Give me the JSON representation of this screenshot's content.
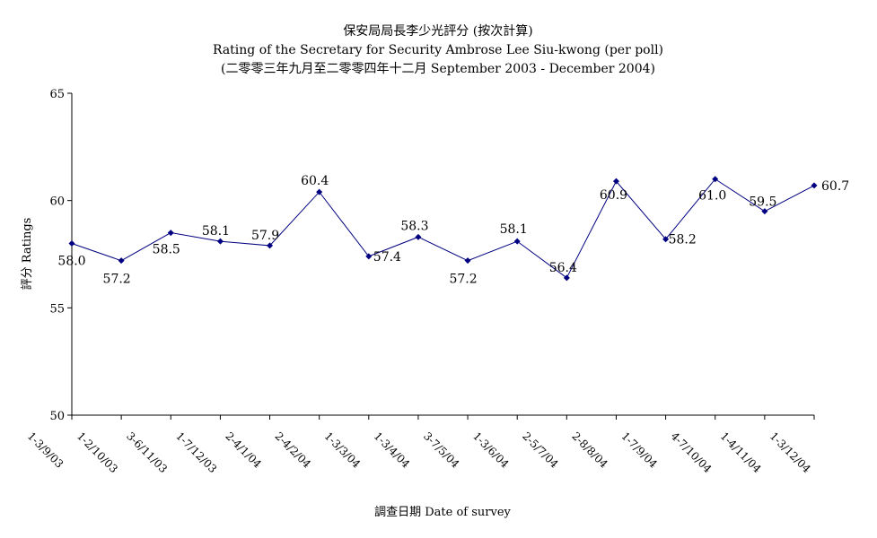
{
  "chart_data": {
    "type": "line",
    "title": "保安局局長李少光評分 (按次計算)",
    "subtitle_line1": "Rating of the Secretary for Security Ambrose Lee Siu-kwong  (per poll)",
    "subtitle_line2": "(二零零三年九月至二零零四年十二月  September 2003 - December 2004)",
    "xlabel": "調查日期 Date of survey",
    "ylabel": "評分 Ratings",
    "ylim": [
      50,
      65
    ],
    "yticks": [
      50,
      55,
      60,
      65
    ],
    "grid": false,
    "categories": [
      "1-3/9/03",
      "1-2/10/03",
      "3-6/11/03",
      "1-7/12/03",
      "2-4/1/04",
      "2-4/2/04",
      "1-3/3/04",
      "1-3/4/04",
      "3-7/5/04",
      "1-3/6/04",
      "2-5/7/04",
      "2-8/8/04",
      "1-7/9/04",
      "4-7/10/04",
      "1-4/11/04",
      "1-3/12/04"
    ],
    "values": [
      58.0,
      57.2,
      58.5,
      58.1,
      57.9,
      60.4,
      57.4,
      58.3,
      57.2,
      58.1,
      56.4,
      60.9,
      58.2,
      61.0,
      59.5,
      60.7
    ],
    "labels": [
      "58.0",
      "57.2",
      "58.5",
      "58.1",
      "57.9",
      "60.4",
      "57.4",
      "58.3",
      "57.2",
      "58.1",
      "56.4",
      "60.9",
      "58.2",
      "61.0",
      "59.5",
      "60.7"
    ],
    "colors": {
      "line": "#000080",
      "marker": "#000080",
      "axis": "#000000"
    }
  }
}
